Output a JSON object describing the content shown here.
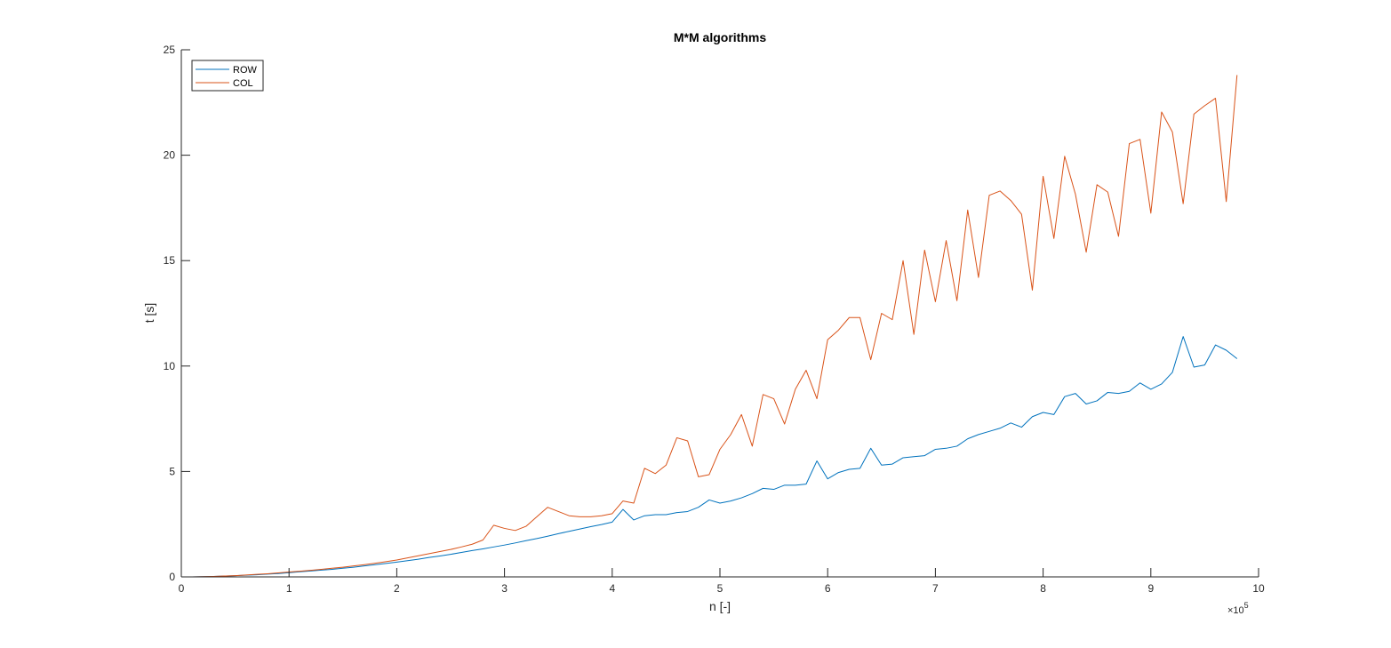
{
  "chart_data": {
    "type": "line",
    "title": "M*M algorithms",
    "xlabel": "n [-]",
    "ylabel": "t [s]",
    "x_multiplier": {
      "base": "×10",
      "exponent": "5"
    },
    "xlim": [
      0,
      10
    ],
    "ylim": [
      0,
      25
    ],
    "x_ticks": [
      "0",
      "1",
      "2",
      "3",
      "4",
      "5",
      "6",
      "7",
      "8",
      "9",
      "10"
    ],
    "y_ticks": [
      "0",
      "5",
      "10",
      "15",
      "20",
      "25"
    ],
    "grid": false,
    "legend": "top-left",
    "x": [
      0.0,
      0.1,
      0.2,
      0.3,
      0.4,
      0.5,
      0.6,
      0.7,
      0.8,
      0.9,
      1.0,
      1.1,
      1.2,
      1.3,
      1.4,
      1.5,
      1.6,
      1.7,
      1.8,
      1.9,
      2.0,
      2.1,
      2.2,
      2.3,
      2.4,
      2.5,
      2.6,
      2.7,
      2.8,
      2.9,
      3.0,
      3.1,
      3.2,
      3.3,
      3.4,
      3.5,
      3.6,
      3.7,
      3.8,
      3.9,
      4.0,
      4.1,
      4.2,
      4.3,
      4.4,
      4.5,
      4.6,
      4.7,
      4.8,
      4.9,
      5.0,
      5.1,
      5.2,
      5.3,
      5.4,
      5.5,
      5.6,
      5.7,
      5.8,
      5.9,
      6.0,
      6.1,
      6.2,
      6.3,
      6.4,
      6.5,
      6.6,
      6.7,
      6.8,
      6.9,
      7.0,
      7.1,
      7.2,
      7.3,
      7.4,
      7.5,
      7.6,
      7.7,
      7.8,
      7.9,
      8.0,
      8.1,
      8.2,
      8.3,
      8.4,
      8.5,
      8.6,
      8.7,
      8.8,
      8.9,
      9.0,
      9.1,
      9.2,
      9.3,
      9.4,
      9.5,
      9.6,
      9.7,
      9.8
    ],
    "series": [
      {
        "name": "ROW",
        "color": "#0072BD",
        "values": [
          0,
          0,
          0.01,
          0.02,
          0.04,
          0.06,
          0.08,
          0.1,
          0.13,
          0.16,
          0.2,
          0.24,
          0.28,
          0.32,
          0.36,
          0.41,
          0.46,
          0.52,
          0.58,
          0.64,
          0.7,
          0.77,
          0.84,
          0.92,
          0.99,
          1.07,
          1.16,
          1.25,
          1.33,
          1.42,
          1.51,
          1.61,
          1.72,
          1.82,
          1.93,
          2.05,
          2.16,
          2.27,
          2.38,
          2.48,
          2.6,
          3.2,
          2.7,
          2.9,
          2.95,
          2.95,
          3.05,
          3.1,
          3.3,
          3.65,
          3.5,
          3.6,
          3.75,
          3.95,
          4.2,
          4.15,
          4.35,
          4.35,
          4.4,
          5.5,
          4.65,
          4.95,
          5.1,
          5.15,
          6.1,
          5.3,
          5.35,
          5.65,
          5.7,
          5.75,
          6.05,
          6.1,
          6.2,
          6.55,
          6.75,
          6.9,
          7.05,
          7.3,
          7.1,
          7.6,
          7.8,
          7.7,
          8.55,
          8.7,
          8.2,
          8.35,
          8.75,
          8.7,
          8.8,
          9.2,
          8.9,
          9.15,
          9.7,
          11.4,
          9.95,
          10.05,
          11.0,
          10.75,
          10.35
        ]
      },
      {
        "name": "COL",
        "color": "#D95319",
        "values": [
          0,
          0,
          0.01,
          0.02,
          0.04,
          0.06,
          0.09,
          0.12,
          0.15,
          0.19,
          0.23,
          0.27,
          0.31,
          0.36,
          0.41,
          0.46,
          0.52,
          0.58,
          0.65,
          0.72,
          0.8,
          0.9,
          1.0,
          1.1,
          1.2,
          1.3,
          1.42,
          1.55,
          1.75,
          2.45,
          2.3,
          2.2,
          2.4,
          2.85,
          3.3,
          3.1,
          2.9,
          2.85,
          2.85,
          2.9,
          3.0,
          3.6,
          3.5,
          5.15,
          4.9,
          5.3,
          6.6,
          6.45,
          4.75,
          4.85,
          6.05,
          6.75,
          7.7,
          6.2,
          8.65,
          8.45,
          7.25,
          8.9,
          9.8,
          8.45,
          11.25,
          11.7,
          12.3,
          12.3,
          10.3,
          12.5,
          12.2,
          15.0,
          11.5,
          15.5,
          13.05,
          15.95,
          13.1,
          17.4,
          14.2,
          18.1,
          18.3,
          17.85,
          17.2,
          13.6,
          19.0,
          16.05,
          19.95,
          18.15,
          15.4,
          18.6,
          18.25,
          16.15,
          20.55,
          20.75,
          17.25,
          22.05,
          21.1,
          17.7,
          21.95,
          22.35,
          22.7,
          17.8,
          23.8
        ]
      }
    ]
  }
}
